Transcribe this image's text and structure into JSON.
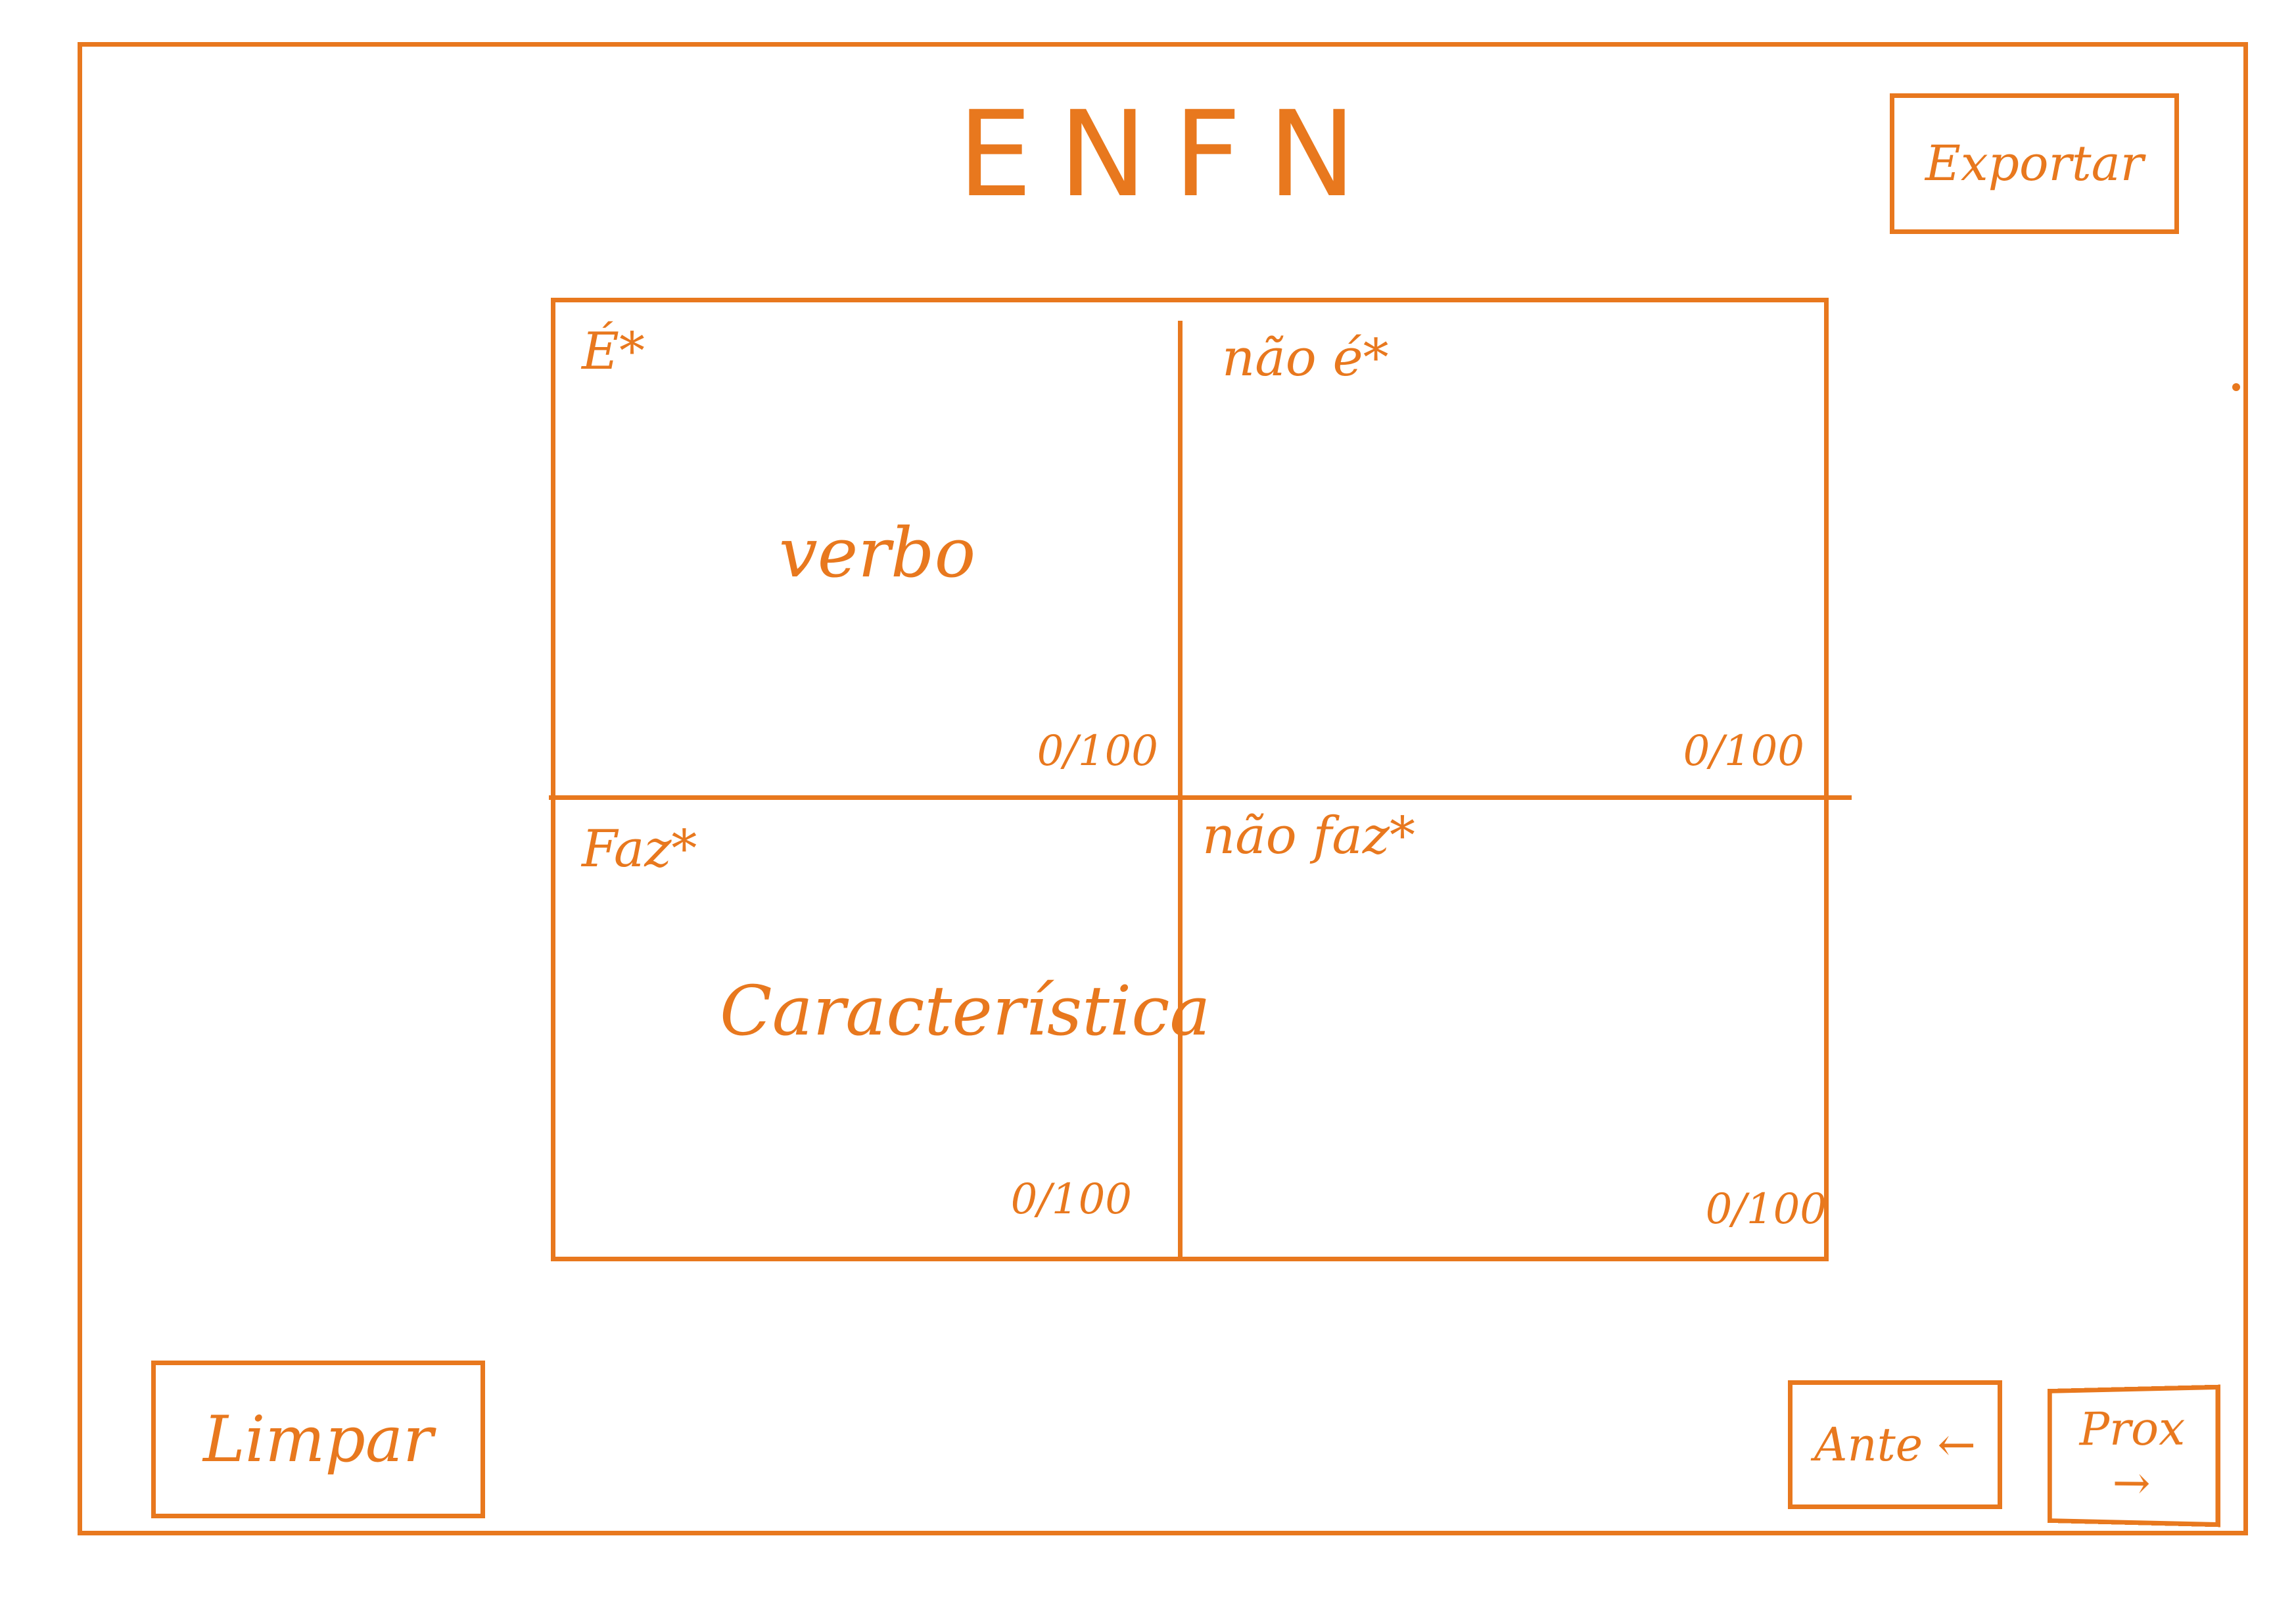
{
  "title": "ENFN",
  "toolbar": {
    "export_label": "Exportar",
    "clear_label": "Limpar",
    "prev_label": "Ante ←",
    "next_label": "Prox →"
  },
  "quadrants": [
    {
      "label": "É*",
      "content": "verbo",
      "count": "0/100"
    },
    {
      "label": "não é*",
      "content": "",
      "count": "0/100"
    },
    {
      "label": "Faz*",
      "content": "Característica",
      "count": "0/100"
    },
    {
      "label": "não faz*",
      "content": "",
      "count": "0/100"
    }
  ],
  "colors": {
    "accent": "#e8781e",
    "background": "#ffffff"
  }
}
